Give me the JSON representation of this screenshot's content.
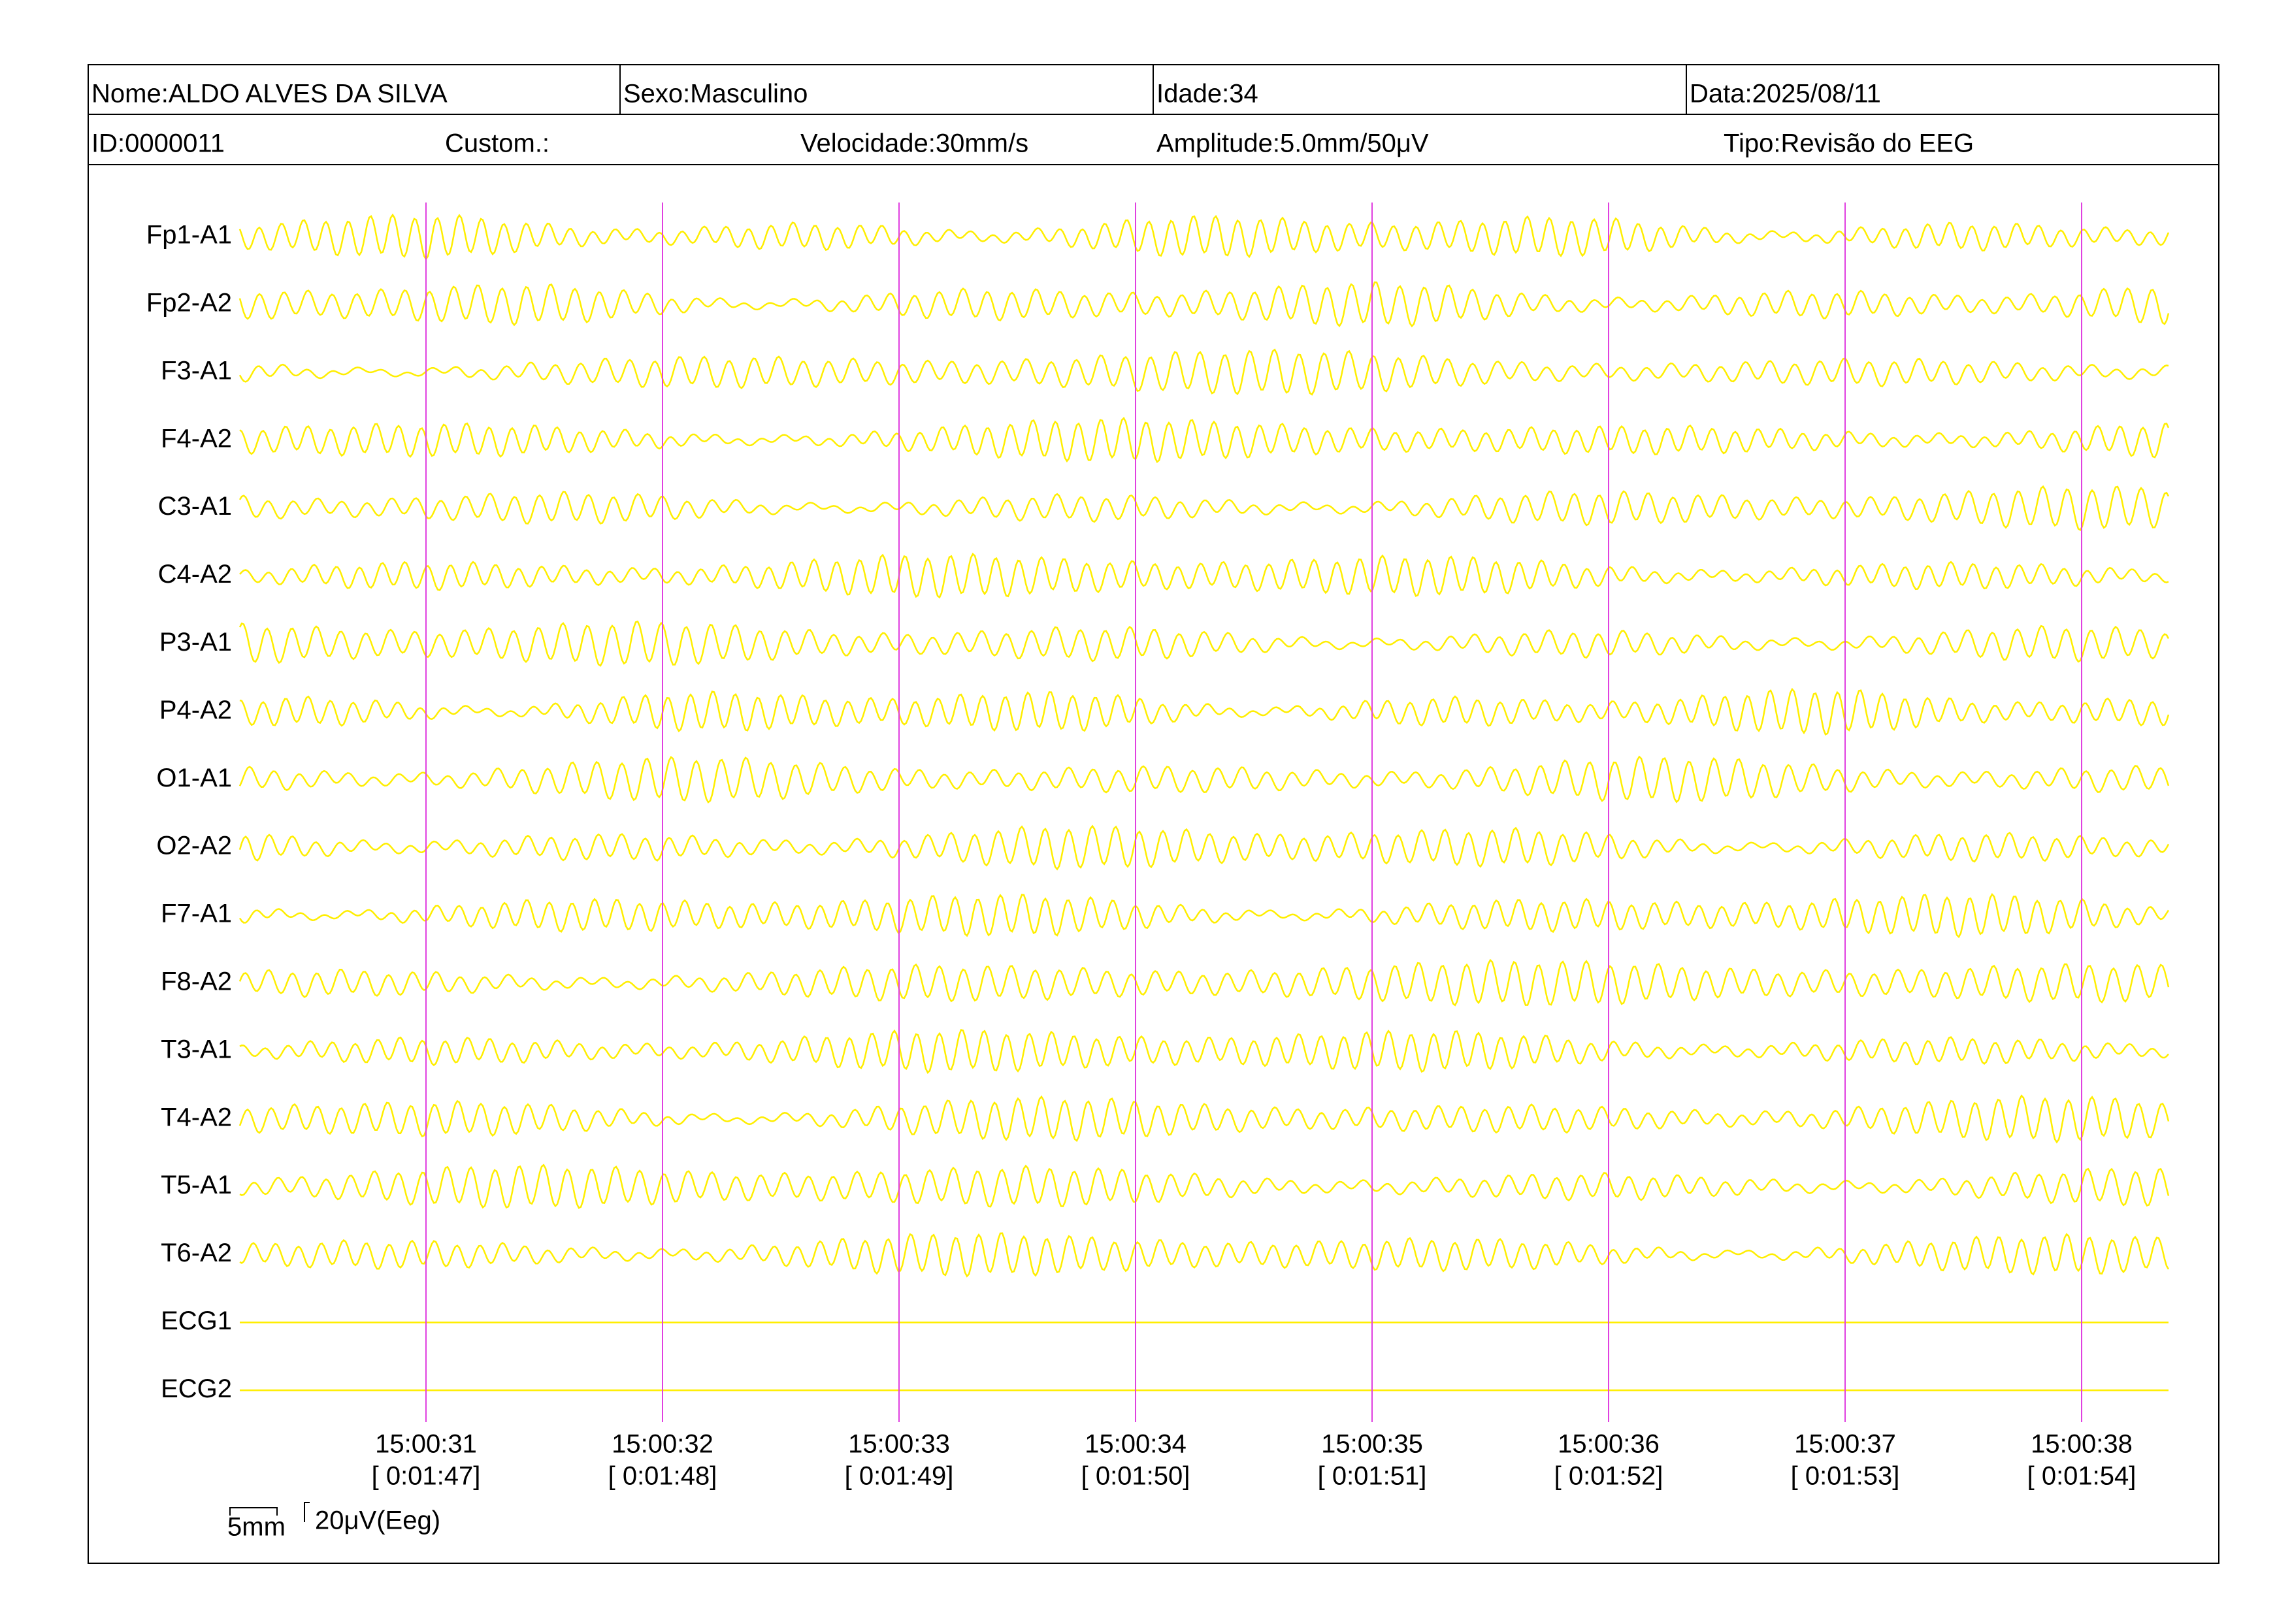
{
  "header": {
    "row1": [
      "Nome:ALDO ALVES DA SILVA",
      "Sexo:Masculino",
      "Idade:34",
      "Data:2025/08/11"
    ],
    "row2": [
      "ID:0000011",
      "Custom.:",
      "Velocidade:30mm/s",
      "Amplitude:5.0mm/50μV",
      "Tipo:Revisão do EEG"
    ]
  },
  "channels": [
    "Fp1-A1",
    "Fp2-A2",
    "F3-A1",
    "F4-A2",
    "C3-A1",
    "C4-A2",
    "P3-A1",
    "P4-A2",
    "O1-A1",
    "O2-A2",
    "F7-A1",
    "F8-A2",
    "T3-A1",
    "T4-A2",
    "T5-A1",
    "T6-A2",
    "ECG1",
    "ECG2"
  ],
  "time_marks": [
    {
      "clock": "15:00:31",
      "elapsed": "[ 0:01:47]"
    },
    {
      "clock": "15:00:32",
      "elapsed": "[ 0:01:48]"
    },
    {
      "clock": "15:00:33",
      "elapsed": "[ 0:01:49]"
    },
    {
      "clock": "15:00:34",
      "elapsed": "[ 0:01:50]"
    },
    {
      "clock": "15:00:35",
      "elapsed": "[ 0:01:51]"
    },
    {
      "clock": "15:00:36",
      "elapsed": "[ 0:01:52]"
    },
    {
      "clock": "15:00:37",
      "elapsed": "[ 0:01:53]"
    },
    {
      "clock": "15:00:38",
      "elapsed": "[ 0:01:54]"
    }
  ],
  "scale": {
    "time": "5mm",
    "amplitude": "20μV(Eeg)"
  }
}
